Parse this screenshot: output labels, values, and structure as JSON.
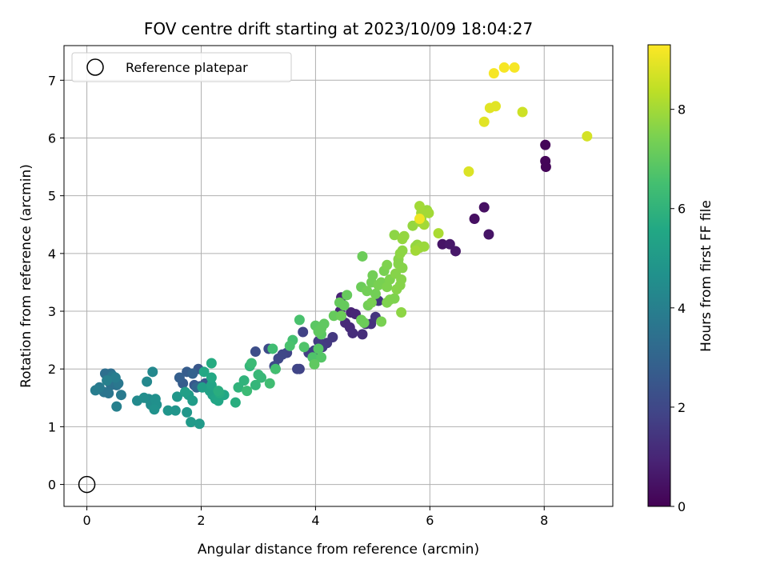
{
  "chart_data": {
    "type": "scatter",
    "title": "FOV centre drift starting at 2023/10/09 18:04:27",
    "xlabel": "Angular distance from reference (arcmin)",
    "ylabel": "Rotation from reference (arcmin)",
    "xlim": [
      -0.4,
      9.2
    ],
    "ylim": [
      -0.38,
      7.6
    ],
    "xticks": [
      0,
      2,
      4,
      6,
      8
    ],
    "yticks": [
      0,
      1,
      2,
      3,
      4,
      5,
      6,
      7
    ],
    "grid": true,
    "colormap": "viridis",
    "colorbar": {
      "label": "Hours from first FF file",
      "min": 0,
      "max": 9.3,
      "ticks": [
        0,
        2,
        4,
        6,
        8
      ]
    },
    "legend": {
      "position": "top-left",
      "entries": [
        {
          "label": "Reference platepar",
          "marker": "open-circle"
        }
      ]
    },
    "reference_point": {
      "x": 0,
      "y": 0
    },
    "points": [
      [
        8.02,
        5.88,
        0.1
      ],
      [
        8.02,
        5.6,
        0.1
      ],
      [
        8.03,
        5.5,
        0.1
      ],
      [
        6.95,
        4.8,
        0.4
      ],
      [
        6.78,
        4.6,
        0.4
      ],
      [
        7.03,
        4.33,
        0.5
      ],
      [
        6.22,
        4.16,
        0.5
      ],
      [
        6.35,
        4.16,
        0.6
      ],
      [
        6.45,
        4.04,
        0.6
      ],
      [
        4.45,
        3.24,
        0.9
      ],
      [
        4.62,
        2.98,
        0.9
      ],
      [
        4.7,
        2.95,
        1.0
      ],
      [
        4.43,
        3.0,
        1.0
      ],
      [
        4.52,
        2.8,
        1.1
      ],
      [
        4.6,
        2.72,
        1.1
      ],
      [
        4.65,
        2.62,
        1.2
      ],
      [
        4.82,
        2.6,
        1.2
      ],
      [
        4.88,
        2.78,
        1.3
      ],
      [
        4.97,
        2.78,
        1.3
      ],
      [
        5.05,
        2.9,
        1.4
      ],
      [
        5.1,
        3.18,
        1.4
      ],
      [
        4.3,
        2.55,
        1.5
      ],
      [
        4.2,
        2.45,
        1.5
      ],
      [
        4.12,
        2.38,
        1.6
      ],
      [
        4.05,
        2.48,
        1.6
      ],
      [
        3.98,
        2.32,
        1.7
      ],
      [
        3.88,
        2.28,
        1.7
      ],
      [
        3.78,
        2.64,
        1.8
      ],
      [
        3.72,
        2.0,
        1.8
      ],
      [
        3.68,
        2.0,
        1.9
      ],
      [
        3.5,
        2.28,
        1.9
      ],
      [
        3.42,
        2.25,
        2.0
      ],
      [
        3.35,
        2.18,
        2.0
      ],
      [
        3.28,
        2.05,
        2.1
      ],
      [
        3.18,
        2.35,
        2.1
      ],
      [
        2.95,
        2.3,
        2.2
      ],
      [
        3.3,
        2.0,
        2.2
      ],
      [
        1.95,
        2.0,
        2.5
      ],
      [
        2.07,
        1.75,
        2.5
      ],
      [
        1.98,
        1.7,
        2.6
      ],
      [
        1.88,
        1.72,
        2.6
      ],
      [
        1.75,
        1.95,
        2.7
      ],
      [
        1.68,
        1.75,
        2.7
      ],
      [
        1.62,
        1.85,
        2.8
      ],
      [
        1.85,
        1.92,
        2.9
      ],
      [
        1.92,
        1.68,
        3.0
      ],
      [
        0.42,
        1.92,
        3.4
      ],
      [
        0.32,
        1.92,
        3.4
      ],
      [
        0.42,
        1.72,
        3.5
      ],
      [
        0.52,
        1.72,
        3.5
      ],
      [
        0.3,
        1.6,
        3.6
      ],
      [
        0.38,
        1.58,
        3.6
      ],
      [
        0.45,
        1.88,
        3.7
      ],
      [
        0.55,
        1.75,
        3.7
      ],
      [
        0.6,
        1.55,
        3.8
      ],
      [
        0.22,
        1.68,
        3.8
      ],
      [
        0.15,
        1.63,
        3.9
      ],
      [
        0.5,
        1.85,
        3.9
      ],
      [
        0.52,
        1.35,
        4.0
      ],
      [
        0.35,
        1.8,
        4.0
      ],
      [
        1.05,
        1.78,
        4.3
      ],
      [
        1.15,
        1.95,
        4.3
      ],
      [
        1.08,
        1.48,
        4.4
      ],
      [
        0.88,
        1.45,
        4.4
      ],
      [
        1.12,
        1.38,
        4.5
      ],
      [
        1.0,
        1.5,
        4.5
      ],
      [
        1.2,
        1.48,
        4.6
      ],
      [
        1.22,
        1.38,
        4.6
      ],
      [
        1.18,
        1.3,
        4.7
      ],
      [
        1.42,
        1.28,
        4.8
      ],
      [
        1.55,
        1.28,
        4.8
      ],
      [
        1.58,
        1.52,
        4.9
      ],
      [
        1.75,
        1.25,
        4.9
      ],
      [
        1.82,
        1.08,
        5.0
      ],
      [
        1.97,
        1.05,
        5.0
      ],
      [
        1.78,
        1.55,
        5.1
      ],
      [
        1.85,
        1.45,
        5.1
      ],
      [
        1.72,
        1.6,
        5.2
      ],
      [
        2.02,
        1.68,
        5.2
      ],
      [
        2.15,
        1.62,
        5.3
      ],
      [
        2.2,
        1.55,
        5.3
      ],
      [
        2.18,
        1.72,
        5.4
      ],
      [
        2.25,
        1.48,
        5.4
      ],
      [
        2.3,
        1.45,
        5.5
      ],
      [
        2.4,
        1.55,
        5.5
      ],
      [
        2.18,
        1.85,
        5.6
      ],
      [
        2.05,
        1.95,
        5.6
      ],
      [
        2.18,
        2.1,
        5.7
      ],
      [
        2.32,
        1.58,
        5.7
      ],
      [
        2.3,
        1.62,
        5.8
      ],
      [
        2.6,
        1.42,
        5.8
      ],
      [
        2.65,
        1.68,
        6.0
      ],
      [
        2.75,
        1.8,
        6.0
      ],
      [
        2.85,
        2.05,
        6.1
      ],
      [
        2.95,
        1.72,
        6.1
      ],
      [
        3.05,
        1.85,
        6.2
      ],
      [
        3.0,
        1.9,
        6.2
      ],
      [
        2.8,
        1.62,
        6.3
      ],
      [
        2.88,
        2.1,
        6.3
      ],
      [
        3.2,
        1.75,
        6.4
      ],
      [
        3.25,
        2.35,
        6.4
      ],
      [
        3.3,
        2.0,
        6.5
      ],
      [
        3.6,
        2.5,
        6.5
      ],
      [
        3.55,
        2.4,
        6.6
      ],
      [
        3.72,
        2.85,
        6.6
      ],
      [
        3.8,
        2.38,
        6.7
      ],
      [
        3.95,
        2.2,
        6.7
      ],
      [
        4.1,
        2.2,
        6.8
      ],
      [
        4.05,
        2.35,
        6.8
      ],
      [
        4.0,
        2.75,
        6.9
      ],
      [
        4.1,
        2.6,
        6.9
      ],
      [
        4.15,
        2.78,
        7.0
      ],
      [
        3.98,
        2.08,
        7.0
      ],
      [
        4.05,
        2.65,
        7.0
      ],
      [
        4.1,
        2.7,
        7.0
      ],
      [
        4.32,
        2.92,
        7.1
      ],
      [
        4.42,
        3.15,
        7.1
      ],
      [
        4.5,
        3.1,
        7.1
      ],
      [
        4.55,
        3.28,
        7.1
      ],
      [
        4.45,
        2.92,
        7.2
      ],
      [
        4.8,
        2.85,
        7.2
      ],
      [
        4.82,
        3.95,
        7.2
      ],
      [
        4.8,
        3.42,
        7.2
      ],
      [
        4.85,
        2.8,
        7.2
      ],
      [
        4.92,
        3.1,
        7.3
      ],
      [
        4.9,
        3.35,
        7.3
      ],
      [
        4.98,
        3.5,
        7.3
      ],
      [
        5.0,
        3.62,
        7.3
      ],
      [
        5.05,
        3.3,
        7.3
      ],
      [
        4.98,
        3.15,
        7.4
      ],
      [
        5.15,
        3.5,
        7.4
      ],
      [
        5.1,
        3.45,
        7.4
      ],
      [
        5.2,
        3.7,
        7.4
      ],
      [
        5.15,
        2.82,
        7.4
      ],
      [
        5.25,
        3.42,
        7.5
      ],
      [
        5.3,
        3.55,
        7.5
      ],
      [
        5.25,
        3.8,
        7.5
      ],
      [
        5.38,
        3.22,
        7.5
      ],
      [
        5.3,
        3.2,
        7.5
      ],
      [
        5.25,
        3.15,
        7.5
      ],
      [
        5.4,
        3.65,
        7.6
      ],
      [
        5.45,
        3.9,
        7.6
      ],
      [
        5.5,
        3.55,
        7.6
      ],
      [
        5.48,
        3.45,
        7.6
      ],
      [
        5.52,
        3.75,
        7.6
      ],
      [
        5.45,
        3.82,
        7.6
      ],
      [
        5.42,
        3.38,
        7.6
      ],
      [
        5.48,
        4.0,
        7.7
      ],
      [
        5.5,
        2.98,
        7.7
      ],
      [
        5.52,
        4.05,
        7.7
      ],
      [
        5.38,
        4.32,
        7.7
      ],
      [
        5.52,
        4.25,
        7.8
      ],
      [
        5.55,
        4.3,
        7.8
      ],
      [
        5.7,
        4.48,
        7.8
      ],
      [
        5.75,
        4.12,
        7.8
      ],
      [
        5.78,
        4.15,
        7.8
      ],
      [
        5.82,
        4.1,
        7.9
      ],
      [
        5.85,
        4.6,
        7.9
      ],
      [
        5.82,
        4.55,
        7.9
      ],
      [
        5.9,
        4.12,
        7.9
      ],
      [
        5.95,
        4.75,
        7.9
      ],
      [
        5.82,
        4.82,
        8.0
      ],
      [
        5.75,
        4.05,
        8.0
      ],
      [
        5.9,
        4.5,
        8.0
      ],
      [
        5.98,
        4.7,
        8.0
      ],
      [
        5.85,
        4.7,
        8.0
      ],
      [
        6.15,
        4.35,
        8.1
      ],
      [
        5.82,
        4.6,
        9.1
      ],
      [
        6.68,
        5.42,
        8.8
      ],
      [
        6.95,
        6.28,
        8.9
      ],
      [
        7.05,
        6.52,
        8.9
      ],
      [
        7.15,
        6.55,
        8.9
      ],
      [
        7.62,
        6.45,
        8.6
      ],
      [
        8.75,
        6.03,
        8.7
      ],
      [
        7.12,
        7.12,
        9.2
      ],
      [
        7.3,
        7.22,
        9.2
      ],
      [
        7.48,
        7.22,
        9.2
      ]
    ]
  }
}
